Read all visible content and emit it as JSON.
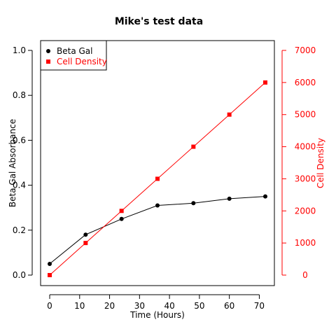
{
  "chart_data": {
    "type": "line",
    "title": "Mike's test data",
    "xlabel": "Time (Hours)",
    "ylabel_left": "Beta Gal Absorbance",
    "ylabel_right": "Cell Density",
    "x": [
      0,
      12,
      24,
      36,
      48,
      60,
      72
    ],
    "xlim": [
      0,
      72
    ],
    "xticks": [
      0,
      10,
      20,
      30,
      40,
      50,
      60,
      70
    ],
    "ylim_left": [
      0,
      1.0
    ],
    "yticks_left": [
      "0.0",
      "0.2",
      "0.4",
      "0.6",
      "0.8",
      "1.0"
    ],
    "ylim_right": [
      0,
      7000
    ],
    "yticks_right": [
      "0",
      "1000",
      "2000",
      "3000",
      "4000",
      "5000",
      "6000",
      "7000"
    ],
    "grid": false,
    "legend_position": "top-left",
    "series": [
      {
        "name": "Beta Gal",
        "axis": "left",
        "color": "#000000",
        "marker": "circle",
        "values": [
          0.05,
          0.18,
          0.25,
          0.31,
          0.32,
          0.34,
          0.35
        ]
      },
      {
        "name": "Cell Density",
        "axis": "right",
        "color": "#ff0000",
        "marker": "square",
        "values": [
          0,
          1000,
          2000,
          3000,
          4000,
          5000,
          6000
        ]
      }
    ]
  }
}
